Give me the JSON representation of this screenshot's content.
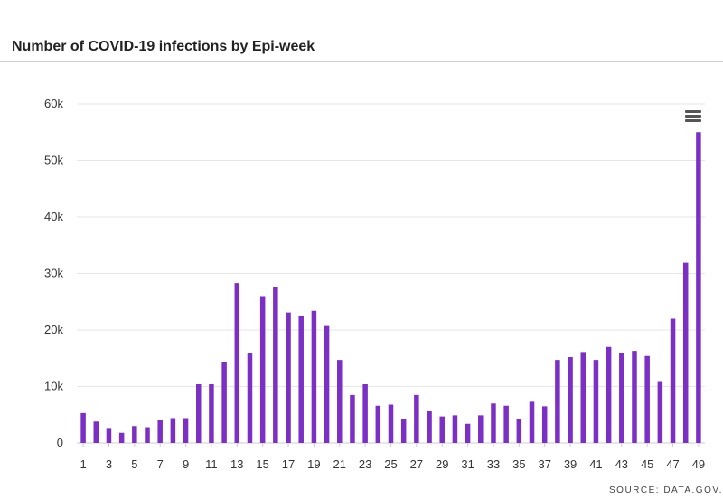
{
  "title": "Number of COVID-19 infections by Epi-week",
  "source": "SOURCE: DATA.GOV.SG",
  "colors": {
    "bar": "#7b2fc4",
    "grid": "#e6e6e6",
    "axis": "#cccccc"
  },
  "icons": {
    "menu": "hamburger-menu-icon"
  },
  "chart_data": {
    "type": "bar",
    "title": "Number of COVID-19 infections by Epi-week",
    "xlabel": "",
    "ylabel": "",
    "ylim": [
      0,
      60000
    ],
    "yticks": [
      "0",
      "10k",
      "20k",
      "30k",
      "40k",
      "50k",
      "60k"
    ],
    "grid": true,
    "legend": "none",
    "categories": [
      1,
      2,
      3,
      4,
      5,
      6,
      7,
      8,
      9,
      10,
      11,
      12,
      13,
      14,
      15,
      16,
      17,
      18,
      19,
      20,
      21,
      22,
      23,
      24,
      25,
      26,
      27,
      28,
      29,
      30,
      31,
      32,
      33,
      34,
      35,
      36,
      37,
      38,
      39,
      40,
      41,
      42,
      43,
      44,
      45,
      46,
      47,
      48,
      49
    ],
    "xtick_labels": [
      "1",
      "3",
      "5",
      "7",
      "9",
      "11",
      "13",
      "15",
      "17",
      "19",
      "21",
      "23",
      "25",
      "27",
      "29",
      "31",
      "33",
      "35",
      "37",
      "39",
      "41",
      "43",
      "45",
      "47",
      "49"
    ],
    "values": [
      5300,
      3800,
      2500,
      1800,
      3000,
      2800,
      4000,
      4400,
      4400,
      10400,
      10400,
      14400,
      28300,
      15900,
      26000,
      27600,
      23100,
      22400,
      23400,
      20700,
      14700,
      8500,
      10400,
      6600,
      6800,
      4200,
      8500,
      5600,
      4700,
      4900,
      3400,
      4900,
      7000,
      6600,
      4200,
      7300,
      6500,
      14700,
      15200,
      16100,
      14700,
      17000,
      15900,
      16300,
      15400,
      10800,
      22000,
      31900,
      55000
    ]
  }
}
